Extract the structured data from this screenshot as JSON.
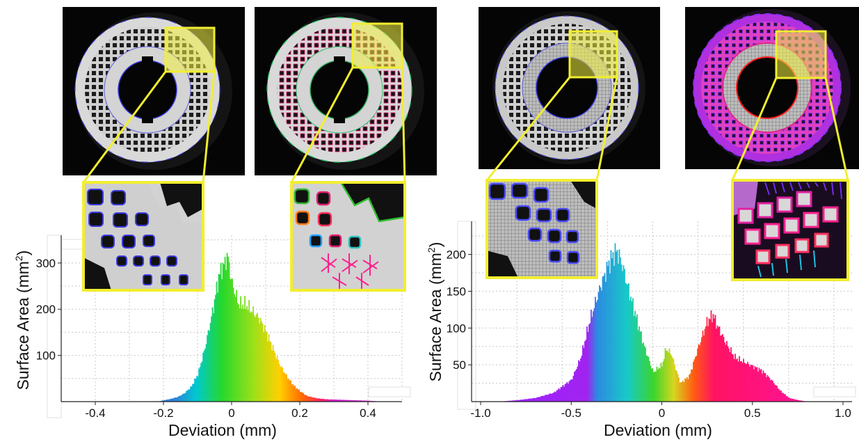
{
  "chart_data": [
    {
      "type": "area",
      "xlabel": "Deviation (mm)",
      "ylabel": "Surface Area (mm",
      "ylabel_sup": "2",
      "ylabel_end": ")",
      "xlim": [
        -0.5,
        0.5
      ],
      "ylim": [
        0,
        360
      ],
      "x_ticks": [
        -0.4,
        -0.2,
        0,
        0.2,
        0.4
      ],
      "x_tick_labels": [
        "-0.4",
        "-0.2",
        "0",
        "0.2",
        "0.4"
      ],
      "y_ticks": [
        100,
        200,
        300
      ],
      "y_tick_labels": [
        "100",
        "200",
        "300"
      ],
      "grid": true,
      "color_scale": "rainbow (blue at -0.2 to magenta at +0.4)",
      "x": [
        -0.22,
        -0.2,
        -0.18,
        -0.16,
        -0.14,
        -0.12,
        -0.1,
        -0.08,
        -0.06,
        -0.05,
        -0.04,
        -0.03,
        -0.02,
        -0.015,
        -0.01,
        0.0,
        0.01,
        0.02,
        0.04,
        0.06,
        0.08,
        0.1,
        0.12,
        0.14,
        0.16,
        0.18,
        0.2,
        0.22,
        0.25,
        0.28,
        0.32,
        0.36,
        0.4,
        0.44
      ],
      "values": [
        0,
        3,
        6,
        10,
        18,
        32,
        60,
        115,
        185,
        225,
        268,
        290,
        300,
        318,
        300,
        255,
        232,
        210,
        210,
        195,
        180,
        150,
        115,
        80,
        55,
        35,
        22,
        12,
        7,
        5,
        4,
        3,
        2,
        0
      ]
    },
    {
      "type": "area",
      "xlabel": "Deviation (mm)",
      "ylabel": "Surface Area (mm",
      "ylabel_sup": "2",
      "ylabel_end": ")",
      "xlim": [
        -1.05,
        1.05
      ],
      "ylim": [
        0,
        245
      ],
      "x_ticks": [
        -1.0,
        -0.5,
        0,
        0.5,
        1.0
      ],
      "x_tick_labels": [
        "-1.0",
        "-0.5",
        "0",
        "0.5",
        "1.0"
      ],
      "y_ticks": [
        50,
        100,
        150,
        200
      ],
      "y_tick_labels": [
        "50",
        "100",
        "150",
        "200"
      ],
      "grid": true,
      "color_scale": "purple (-0.5) through blue, green, yellow, red to magenta (+0.5)",
      "x": [
        -0.9,
        -0.8,
        -0.7,
        -0.6,
        -0.5,
        -0.45,
        -0.4,
        -0.35,
        -0.3,
        -0.27,
        -0.25,
        -0.22,
        -0.2,
        -0.15,
        -0.1,
        -0.05,
        0.0,
        0.02,
        0.05,
        0.08,
        0.1,
        0.15,
        0.2,
        0.25,
        0.28,
        0.3,
        0.35,
        0.4,
        0.5,
        0.55,
        0.6,
        0.65,
        0.7,
        0.75,
        0.8
      ],
      "values": [
        0,
        2,
        5,
        12,
        30,
        60,
        110,
        150,
        185,
        200,
        205,
        185,
        165,
        120,
        75,
        40,
        50,
        72,
        65,
        40,
        25,
        35,
        75,
        110,
        118,
        105,
        80,
        60,
        48,
        42,
        30,
        15,
        5,
        2,
        0
      ]
    }
  ]
}
